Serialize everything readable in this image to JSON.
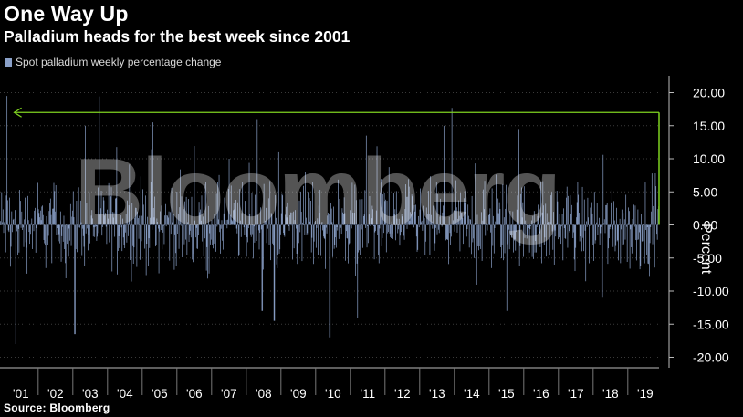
{
  "title": "One Way Up",
  "subtitle": "Palladium heads for the best week since 2001",
  "legend_label": "Spot palladium weekly percentage change",
  "source": "Source: Bloomberg",
  "watermark": "Bloomberg",
  "colors": {
    "bar": "#8aa0c8",
    "arrow": "#7fd321",
    "axis": "#bbbbbb"
  },
  "chart_data": {
    "type": "bar",
    "title": "Palladium heads for the best week since 2001",
    "series": [
      {
        "name": "Spot palladium weekly percentage change"
      }
    ],
    "ylabel": "Percent",
    "ylim": [
      -20,
      20
    ],
    "yticks": [
      20,
      15,
      10,
      5,
      0,
      -5,
      -10,
      -15,
      -20
    ],
    "ytick_labels": [
      "20.00",
      "15.00",
      "10.00",
      "5.00",
      "0.00",
      "-5.00",
      "-10.00",
      "-15.00",
      "-20.00"
    ],
    "xlim": [
      2000.9,
      2019.9
    ],
    "year_ticks": [
      "'01",
      "'02",
      "'03",
      "'04",
      "'05",
      "'06",
      "'07",
      "'08",
      "'09",
      "'10",
      "'11",
      "'12",
      "'13",
      "'14",
      "'15",
      "'16",
      "'17",
      "'18",
      "'19"
    ],
    "notable_weeks": [
      {
        "t": 2001.1,
        "value": 19.5
      },
      {
        "t": 2001.35,
        "value": -18
      },
      {
        "t": 2002.5,
        "value": 6
      },
      {
        "t": 2003.05,
        "value": -16.5
      },
      {
        "t": 2003.35,
        "value": 15
      },
      {
        "t": 2005.3,
        "value": 15.5
      },
      {
        "t": 2007.5,
        "value": 10
      },
      {
        "t": 2008.3,
        "value": 16
      },
      {
        "t": 2008.45,
        "value": -13
      },
      {
        "t": 2008.8,
        "value": -14.5
      },
      {
        "t": 2009.2,
        "value": 15
      },
      {
        "t": 2010.4,
        "value": -17
      },
      {
        "t": 2011.2,
        "value": -14
      },
      {
        "t": 2011.45,
        "value": 13.5
      },
      {
        "t": 2015.5,
        "value": -13
      },
      {
        "t": 2015.85,
        "value": 14.5
      },
      {
        "t": 2018.25,
        "value": -11
      },
      {
        "t": 2019.9,
        "value": 17
      }
    ],
    "annotation": {
      "type": "arrow",
      "value": 17,
      "from_t": 2019.9,
      "to_t": 2001.1
    }
  }
}
